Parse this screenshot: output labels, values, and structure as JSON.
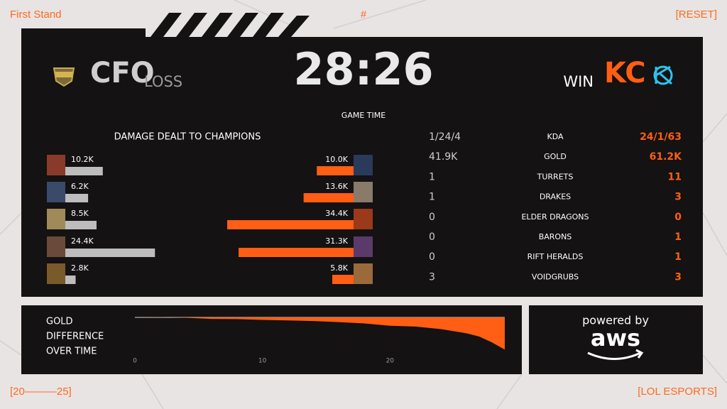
{
  "corners": {
    "top_left": "First Stand",
    "top_center": "#",
    "top_right": "[RESET]",
    "bottom_left": "[20———25]",
    "bottom_right": "[LOL ESPORTS]"
  },
  "header": {
    "team_left": "CFO",
    "result_left": "LOSS",
    "time": "28:26",
    "time_label": "GAME TIME",
    "result_right": "WIN",
    "team_right": "KC"
  },
  "damage": {
    "title": "DAMAGE DEALT TO CHAMPIONS",
    "left": [
      {
        "value": 10200,
        "label": "10.2K"
      },
      {
        "value": 6200,
        "label": "6.2K"
      },
      {
        "value": 8500,
        "label": "8.5K"
      },
      {
        "value": 24400,
        "label": "24.4K"
      },
      {
        "value": 2800,
        "label": "2.8K"
      }
    ],
    "right": [
      {
        "value": 10000,
        "label": "10.0K"
      },
      {
        "value": 13600,
        "label": "13.6K"
      },
      {
        "value": 34400,
        "label": "34.4K"
      },
      {
        "value": 31300,
        "label": "31.3K"
      },
      {
        "value": 5800,
        "label": "5.8K"
      }
    ]
  },
  "stats": {
    "rows": [
      {
        "left": "1/24/4",
        "name": "KDA",
        "right": "24/1/63"
      },
      {
        "left": "41.9K",
        "name": "GOLD",
        "right": "61.2K"
      },
      {
        "left": 1,
        "name": "TURRETS",
        "right": 11
      },
      {
        "left": 1,
        "name": "DRAKES",
        "right": 3
      },
      {
        "left": 0,
        "name": "ELDER DRAGONS",
        "right": 0
      },
      {
        "left": 0,
        "name": "BARONS",
        "right": 1
      },
      {
        "left": 0,
        "name": "RIFT HERALDS",
        "right": 1
      },
      {
        "left": 3,
        "name": "VOIDGRUBS",
        "right": 3
      }
    ]
  },
  "gold_chart": {
    "type": "area",
    "title_lines": [
      "GOLD",
      "DIFFERENCE",
      "OVER TIME"
    ],
    "x": [
      0,
      2,
      4,
      6,
      8,
      10,
      12,
      14,
      16,
      18,
      20,
      22,
      24,
      26,
      27,
      28,
      29
    ],
    "values": [
      0,
      100,
      -200,
      -900,
      -1000,
      -1500,
      -1800,
      -2200,
      -2800,
      -3600,
      -5000,
      -5500,
      -7000,
      -9500,
      -11500,
      -15000,
      -19300
    ],
    "color": "#ff5e14",
    "xlim": [
      0,
      29
    ],
    "ylim": [
      -20000,
      0
    ],
    "xticks": [
      0,
      10,
      20
    ]
  },
  "sponsor": {
    "line1": "powered by",
    "line2": "aws"
  }
}
